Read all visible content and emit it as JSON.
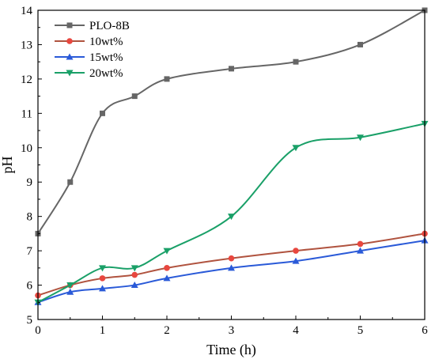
{
  "chart_data": {
    "type": "line",
    "xlabel": "Time (h)",
    "ylabel": "pH",
    "xlim": [
      0,
      6
    ],
    "ylim": [
      5,
      14
    ],
    "xticks": [
      "0",
      "1",
      "2",
      "3",
      "4",
      "5",
      "6"
    ],
    "yticks": [
      "5",
      "6",
      "7",
      "8",
      "9",
      "10",
      "11",
      "12",
      "13",
      "14"
    ],
    "grid": false,
    "legend_position": "top-left",
    "series": [
      {
        "name": "PLO-8B",
        "color": "#666666",
        "marker": "square",
        "x": [
          0,
          0.5,
          1,
          1.5,
          2,
          3,
          4,
          5,
          6
        ],
        "y": [
          7.5,
          9.0,
          11.0,
          11.5,
          12.0,
          12.3,
          12.5,
          13.0,
          14.0
        ]
      },
      {
        "name": "10wt%",
        "color": "#e8473f",
        "line_color": "#b0533f",
        "marker": "circle",
        "x": [
          0,
          0.5,
          1,
          1.5,
          2,
          3,
          4,
          5,
          6
        ],
        "y": [
          5.7,
          6.0,
          6.2,
          6.3,
          6.5,
          6.78,
          7.0,
          7.2,
          7.5
        ]
      },
      {
        "name": "15wt%",
        "color": "#2a5ad8",
        "marker": "triangle-up",
        "x": [
          0,
          0.5,
          1,
          1.5,
          2,
          3,
          4,
          5,
          6
        ],
        "y": [
          5.5,
          5.8,
          5.9,
          6.0,
          6.2,
          6.5,
          6.7,
          7.0,
          7.3
        ]
      },
      {
        "name": "20wt%",
        "color": "#1aa068",
        "marker": "triangle-down",
        "x": [
          0,
          0.5,
          1,
          1.5,
          2,
          3,
          4,
          5,
          6
        ],
        "y": [
          5.5,
          6.0,
          6.5,
          6.5,
          7.0,
          8.0,
          10.0,
          10.3,
          10.7
        ]
      }
    ]
  }
}
